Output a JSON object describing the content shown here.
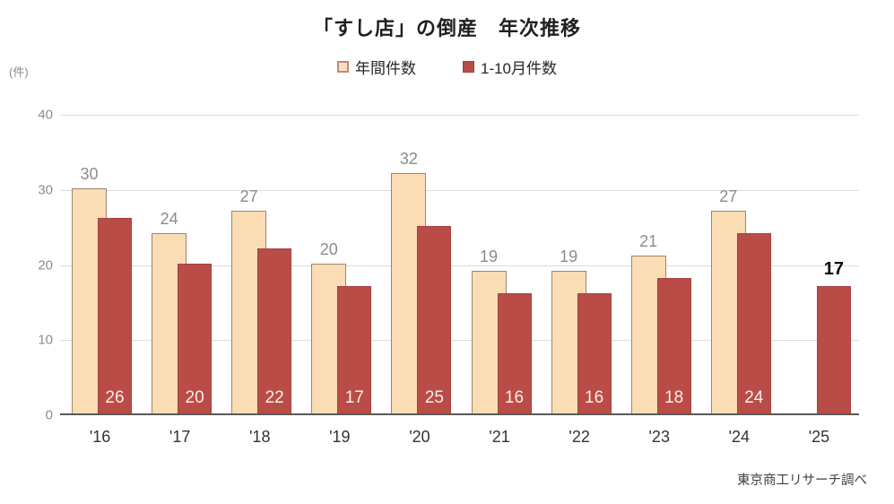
{
  "title": "「すし店」の倒産　年次推移",
  "unit_label": "(件)",
  "source": "東京商工リサーチ調べ",
  "legend": {
    "annual_label": "年間件数",
    "jan_oct_label": "1-10月件数"
  },
  "colors": {
    "annual_fill": "#FADCB5",
    "annual_border": "#9C8572",
    "jan_oct_fill": "#BA4C48",
    "grid": "#DCDCDC",
    "axis": "#595959",
    "annual_value_label": "#8C8C8C",
    "inside_value_label": "#FAEFE8",
    "final_value_label": "#0A0A0A"
  },
  "chart_data": {
    "type": "bar",
    "title": "「すし店」の倒産　年次推移",
    "ylabel": "(件)",
    "categories": [
      "'16",
      "'17",
      "'18",
      "'19",
      "'20",
      "'21",
      "'22",
      "'23",
      "'24",
      "'25"
    ],
    "series": [
      {
        "name": "年間件数",
        "values": [
          30,
          24,
          27,
          20,
          32,
          19,
          19,
          21,
          27,
          null
        ]
      },
      {
        "name": "1-10月件数",
        "values": [
          26,
          20,
          22,
          17,
          25,
          16,
          16,
          18,
          24,
          17
        ]
      }
    ],
    "ylim": [
      0,
      40
    ],
    "yticks": [
      0,
      10,
      20,
      30,
      40
    ],
    "grid": true,
    "legend_position": "top",
    "source": "東京商工リサーチ調べ"
  }
}
